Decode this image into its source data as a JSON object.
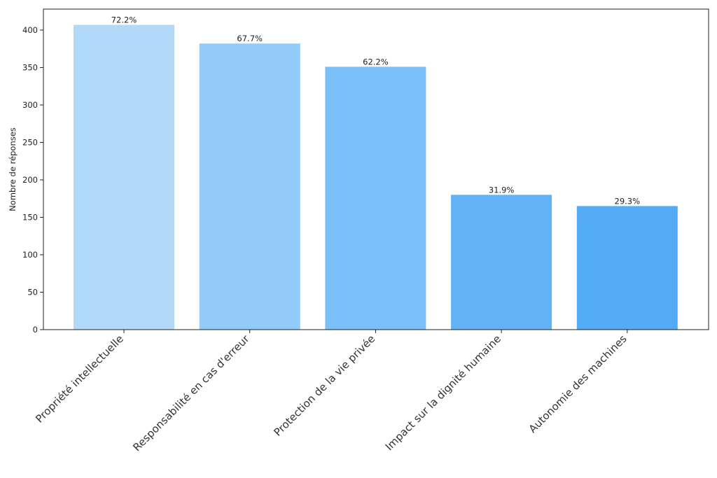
{
  "chart_data": {
    "type": "bar",
    "title": "",
    "xlabel": "",
    "ylabel": "Nombre de réponses",
    "categories": [
      "Propriété intellectuelle",
      "Responsabilité en cas d'erreur",
      "Protection de la vie privée",
      "Impact sur la dignité humaine",
      "Autonomie des machines"
    ],
    "values": [
      407,
      382,
      351,
      180,
      165
    ],
    "data_labels": [
      "72.2%",
      "67.7%",
      "62.2%",
      "31.9%",
      "29.3%"
    ],
    "colors": [
      "#b3d9f9",
      "#92cbf8",
      "#7abff8",
      "#62b2f6",
      "#54abf5"
    ],
    "ylim": [
      0,
      428
    ],
    "yticks": [
      0,
      50,
      100,
      150,
      200,
      250,
      300,
      350,
      400
    ],
    "grid": false,
    "legend": "none"
  }
}
